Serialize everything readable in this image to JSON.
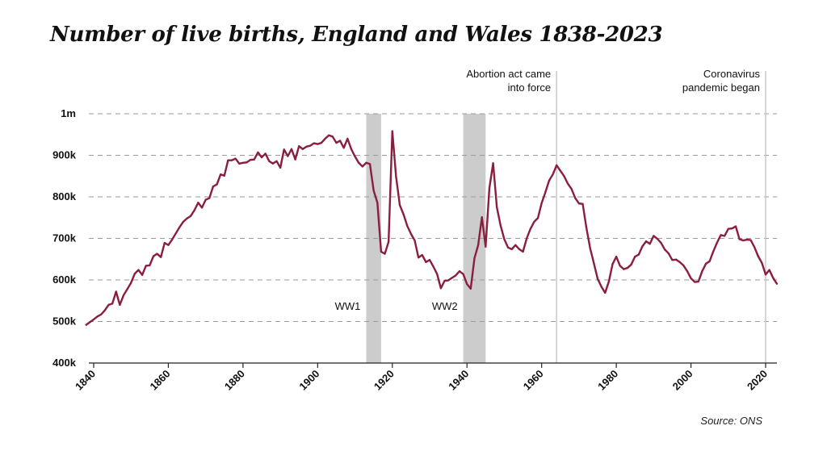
{
  "title": "Number of live births, England and Wales 1838-2023",
  "source": "Source: ONS",
  "colors": {
    "line": "#8b1e3f",
    "band": "#cccccc",
    "grid": "#9a9a9a",
    "marker": "#c8c8c8"
  },
  "chart_data": {
    "type": "line",
    "title": "Number of live births, England and Wales 1838-2023",
    "xlabel": "",
    "ylabel": "",
    "xlim": [
      1838,
      2023
    ],
    "ylim": [
      400000,
      1000000
    ],
    "grid": true,
    "x_ticks": [
      1840,
      1860,
      1880,
      1900,
      1920,
      1940,
      1960,
      1980,
      2000,
      2020
    ],
    "y_ticks": [
      {
        "value": 400000,
        "label": "400k"
      },
      {
        "value": 500000,
        "label": "500k"
      },
      {
        "value": 600000,
        "label": "600k"
      },
      {
        "value": 700000,
        "label": "700k"
      },
      {
        "value": 800000,
        "label": "800k"
      },
      {
        "value": 900000,
        "label": "900k"
      },
      {
        "value": 1000000,
        "label": "1m"
      }
    ],
    "bands": [
      {
        "label": "WW1",
        "start": 1913,
        "end": 1917
      },
      {
        "label": "WW2",
        "start": 1939,
        "end": 1945
      }
    ],
    "markers": [
      {
        "year": 1964,
        "label_lines": [
          "Abortion act came",
          "into force"
        ]
      },
      {
        "year": 2020,
        "label_lines": [
          "Coronavirus",
          "pandemic began"
        ]
      }
    ],
    "series": [
      {
        "points": [
          [
            1838,
            492000
          ],
          [
            1840,
            505000
          ],
          [
            1841,
            512000
          ],
          [
            1842,
            517000
          ],
          [
            1843,
            527000
          ],
          [
            1844,
            540000
          ],
          [
            1845,
            543000
          ],
          [
            1846,
            572000
          ],
          [
            1847,
            540000
          ],
          [
            1848,
            563000
          ],
          [
            1849,
            578000
          ],
          [
            1850,
            593000
          ],
          [
            1851,
            615000
          ],
          [
            1852,
            624000
          ],
          [
            1853,
            612000
          ],
          [
            1854,
            634000
          ],
          [
            1855,
            635000
          ],
          [
            1856,
            657000
          ],
          [
            1857,
            663000
          ],
          [
            1858,
            655000
          ],
          [
            1859,
            689000
          ],
          [
            1860,
            684000
          ],
          [
            1861,
            697000
          ],
          [
            1862,
            712000
          ],
          [
            1863,
            727000
          ],
          [
            1864,
            740000
          ],
          [
            1865,
            748000
          ],
          [
            1866,
            754000
          ],
          [
            1867,
            768000
          ],
          [
            1868,
            786000
          ],
          [
            1869,
            774000
          ],
          [
            1870,
            793000
          ],
          [
            1871,
            797000
          ],
          [
            1872,
            825000
          ],
          [
            1873,
            830000
          ],
          [
            1874,
            854000
          ],
          [
            1875,
            851000
          ],
          [
            1876,
            888000
          ],
          [
            1877,
            888000
          ],
          [
            1878,
            892000
          ],
          [
            1879,
            880000
          ],
          [
            1880,
            882000
          ],
          [
            1881,
            883000
          ],
          [
            1882,
            889000
          ],
          [
            1883,
            890000
          ],
          [
            1884,
            907000
          ],
          [
            1885,
            895000
          ],
          [
            1886,
            904000
          ],
          [
            1887,
            886000
          ],
          [
            1888,
            880000
          ],
          [
            1889,
            886000
          ],
          [
            1890,
            870000
          ],
          [
            1891,
            914000
          ],
          [
            1892,
            898000
          ],
          [
            1893,
            915000
          ],
          [
            1894,
            890000
          ],
          [
            1895,
            922000
          ],
          [
            1896,
            915000
          ],
          [
            1897,
            921000
          ],
          [
            1898,
            923000
          ],
          [
            1899,
            929000
          ],
          [
            1900,
            927000
          ],
          [
            1901,
            930000
          ],
          [
            1902,
            940000
          ],
          [
            1903,
            948000
          ],
          [
            1904,
            945000
          ],
          [
            1905,
            930000
          ],
          [
            1906,
            935000
          ],
          [
            1907,
            918000
          ],
          [
            1908,
            940000
          ],
          [
            1909,
            915000
          ],
          [
            1910,
            897000
          ],
          [
            1911,
            882000
          ],
          [
            1912,
            873000
          ],
          [
            1913,
            882000
          ],
          [
            1914,
            879000
          ],
          [
            1915,
            815000
          ],
          [
            1916,
            786000
          ],
          [
            1917,
            668000
          ],
          [
            1918,
            663000
          ],
          [
            1919,
            692000
          ],
          [
            1920,
            958000
          ],
          [
            1921,
            849000
          ],
          [
            1922,
            780000
          ],
          [
            1923,
            758000
          ],
          [
            1924,
            730000
          ],
          [
            1925,
            711000
          ],
          [
            1926,
            695000
          ],
          [
            1927,
            654000
          ],
          [
            1928,
            660000
          ],
          [
            1929,
            643000
          ],
          [
            1930,
            648000
          ],
          [
            1931,
            632000
          ],
          [
            1932,
            614000
          ],
          [
            1933,
            580000
          ],
          [
            1934,
            598000
          ],
          [
            1935,
            599000
          ],
          [
            1936,
            605000
          ],
          [
            1937,
            611000
          ],
          [
            1938,
            621000
          ],
          [
            1939,
            614000
          ],
          [
            1940,
            590000
          ],
          [
            1941,
            579000
          ],
          [
            1942,
            652000
          ],
          [
            1943,
            684000
          ],
          [
            1944,
            751000
          ],
          [
            1945,
            680000
          ],
          [
            1946,
            821000
          ],
          [
            1947,
            881000
          ],
          [
            1948,
            775000
          ],
          [
            1949,
            731000
          ],
          [
            1950,
            698000
          ],
          [
            1951,
            678000
          ],
          [
            1952,
            674000
          ],
          [
            1953,
            684000
          ],
          [
            1954,
            674000
          ],
          [
            1955,
            668000
          ],
          [
            1956,
            700000
          ],
          [
            1957,
            723000
          ],
          [
            1958,
            740000
          ],
          [
            1959,
            749000
          ],
          [
            1960,
            785000
          ],
          [
            1961,
            811000
          ],
          [
            1962,
            839000
          ],
          [
            1963,
            854000
          ],
          [
            1964,
            876000
          ],
          [
            1965,
            863000
          ],
          [
            1966,
            850000
          ],
          [
            1967,
            832000
          ],
          [
            1968,
            819000
          ],
          [
            1969,
            797000
          ],
          [
            1970,
            784000
          ],
          [
            1971,
            783000
          ],
          [
            1972,
            725000
          ],
          [
            1973,
            676000
          ],
          [
            1974,
            640000
          ],
          [
            1975,
            603000
          ],
          [
            1976,
            584000
          ],
          [
            1977,
            569000
          ],
          [
            1978,
            596000
          ],
          [
            1979,
            638000
          ],
          [
            1980,
            656000
          ],
          [
            1981,
            634000
          ],
          [
            1982,
            626000
          ],
          [
            1983,
            629000
          ],
          [
            1984,
            637000
          ],
          [
            1985,
            656000
          ],
          [
            1986,
            661000
          ],
          [
            1987,
            681000
          ],
          [
            1988,
            693000
          ],
          [
            1989,
            687000
          ],
          [
            1990,
            706000
          ],
          [
            1991,
            699000
          ],
          [
            1992,
            689000
          ],
          [
            1993,
            673000
          ],
          [
            1994,
            664000
          ],
          [
            1995,
            648000
          ],
          [
            1996,
            649000
          ],
          [
            1997,
            643000
          ],
          [
            1998,
            635000
          ],
          [
            1999,
            621000
          ],
          [
            2000,
            604000
          ],
          [
            2001,
            595000
          ],
          [
            2002,
            596000
          ],
          [
            2003,
            621000
          ],
          [
            2004,
            639000
          ],
          [
            2005,
            645000
          ],
          [
            2006,
            669000
          ],
          [
            2007,
            690000
          ],
          [
            2008,
            708000
          ],
          [
            2009,
            706000
          ],
          [
            2010,
            723000
          ],
          [
            2011,
            724000
          ],
          [
            2012,
            729000
          ],
          [
            2013,
            698000
          ],
          [
            2014,
            695000
          ],
          [
            2015,
            697000
          ],
          [
            2016,
            696000
          ],
          [
            2017,
            679000
          ],
          [
            2018,
            657000
          ],
          [
            2019,
            641000
          ],
          [
            2020,
            613000
          ],
          [
            2021,
            624000
          ],
          [
            2022,
            605000
          ],
          [
            2023,
            591000
          ]
        ]
      }
    ]
  }
}
